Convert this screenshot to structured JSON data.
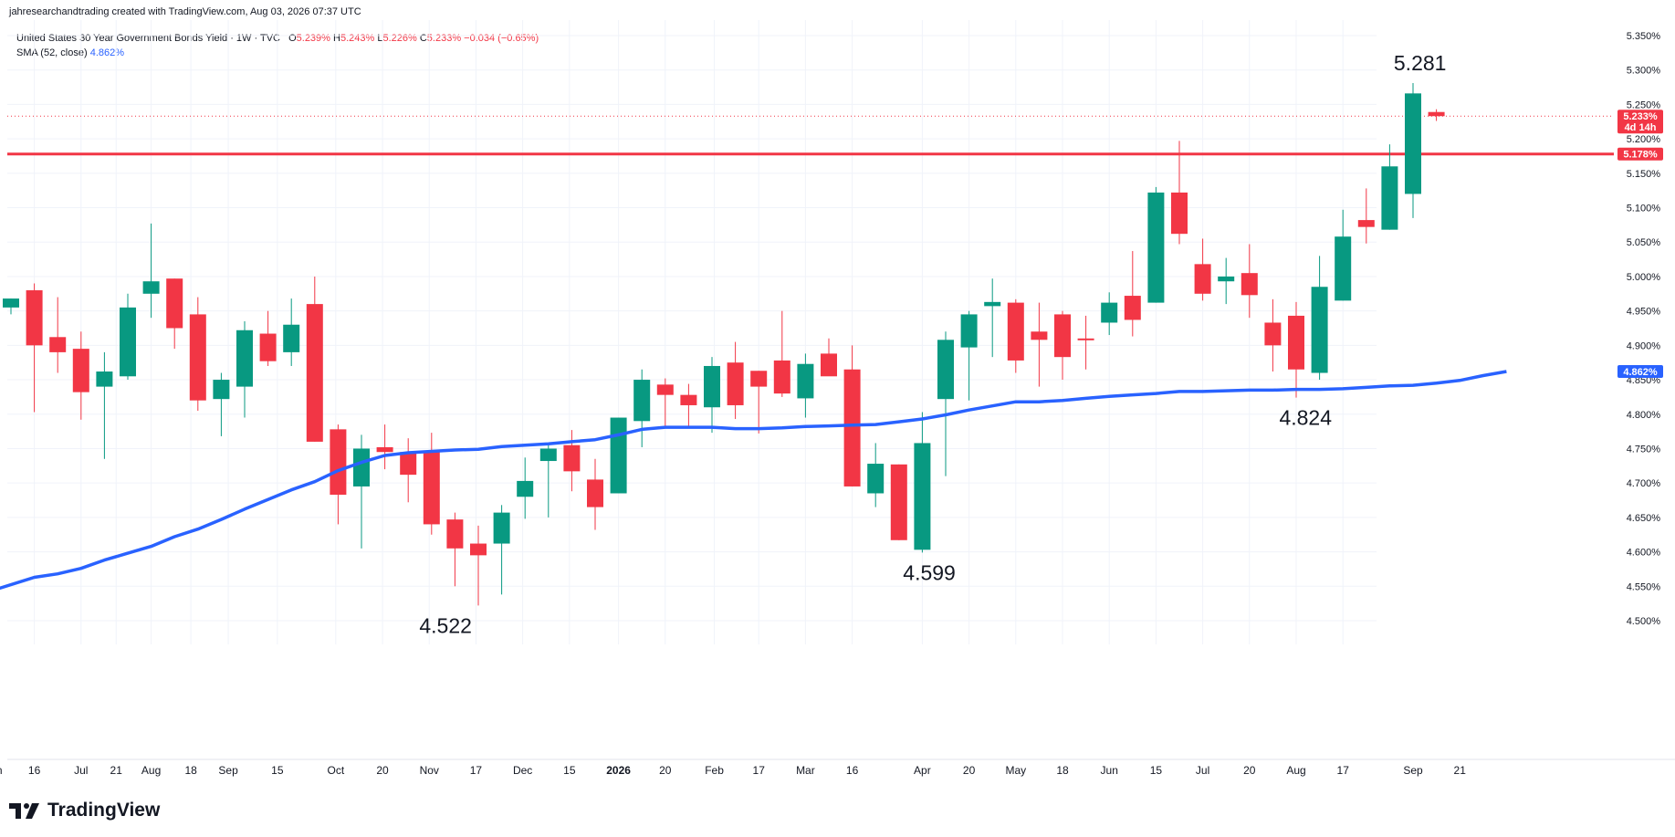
{
  "header": {
    "created_line": "jahresearchandtrading created with TradingView.com, Aug 03, 2026 07:37 UTC"
  },
  "legend": {
    "symbol": "United States 30 Year Government Bonds Yield · 1W · TVC",
    "o_label": "O",
    "o_value": "5.239%",
    "h_label": "H",
    "h_value": "5.243%",
    "l_label": "L",
    "l_value": "5.226%",
    "c_label": "C",
    "c_value": "5.233%",
    "change": "−0.034 (−0.65%)",
    "sma_label": "SMA (52, close)",
    "sma_value": "4.862%"
  },
  "brand": {
    "name": "TradingView"
  },
  "colors": {
    "up": "#089981",
    "down": "#f23645",
    "sma": "#2962ff",
    "resistance": "#f23645",
    "grid": "#f0f3fa",
    "axis_text": "#131722"
  },
  "chart_data": {
    "type": "candlestick",
    "title": "United States 30 Year Government Bonds Yield",
    "interval": "1W",
    "y_axis_side": "right",
    "ylim": [
      4.475,
      5.37
    ],
    "y_ticks": [
      "4.500%",
      "4.550%",
      "4.600%",
      "4.650%",
      "4.700%",
      "4.750%",
      "4.800%",
      "4.850%",
      "4.900%",
      "4.950%",
      "5.000%",
      "5.050%",
      "5.100%",
      "5.150%",
      "5.200%",
      "5.250%",
      "5.300%",
      "5.350%"
    ],
    "x_ticks": [
      {
        "label": "n",
        "i": -0.5
      },
      {
        "label": "16",
        "i": 1
      },
      {
        "label": "Jul",
        "i": 3
      },
      {
        "label": "21",
        "i": 4.5
      },
      {
        "label": "Aug",
        "i": 6
      },
      {
        "label": "18",
        "i": 7.7
      },
      {
        "label": "Sep",
        "i": 9.3
      },
      {
        "label": "15",
        "i": 11.4
      },
      {
        "label": "Oct",
        "i": 13.9
      },
      {
        "label": "20",
        "i": 15.9
      },
      {
        "label": "Nov",
        "i": 17.9
      },
      {
        "label": "17",
        "i": 19.9
      },
      {
        "label": "Dec",
        "i": 21.9
      },
      {
        "label": "15",
        "i": 23.9
      },
      {
        "label": "2026",
        "i": 26.0
      },
      {
        "label": "20",
        "i": 28.0
      },
      {
        "label": "Feb",
        "i": 30.1
      },
      {
        "label": "17",
        "i": 32.0
      },
      {
        "label": "Mar",
        "i": 34.0
      },
      {
        "label": "16",
        "i": 36.0
      },
      {
        "label": "Apr",
        "i": 39.0
      },
      {
        "label": "20",
        "i": 41.0
      },
      {
        "label": "May",
        "i": 43.0
      },
      {
        "label": "18",
        "i": 45.0
      },
      {
        "label": "Jun",
        "i": 47.0
      },
      {
        "label": "15",
        "i": 49.0
      },
      {
        "label": "Jul",
        "i": 51.0
      },
      {
        "label": "20",
        "i": 53.0
      },
      {
        "label": "Aug",
        "i": 55.0
      },
      {
        "label": "17",
        "i": 57.0
      },
      {
        "label": "Sep",
        "i": 60.0
      },
      {
        "label": "21",
        "i": 62.0
      }
    ],
    "candles": [
      {
        "o": 4.955,
        "h": 4.968,
        "l": 4.945,
        "c": 4.968
      },
      {
        "o": 4.98,
        "h": 4.99,
        "l": 4.803,
        "c": 4.9
      },
      {
        "o": 4.912,
        "h": 4.97,
        "l": 4.86,
        "c": 4.89
      },
      {
        "o": 4.895,
        "h": 4.92,
        "l": 4.792,
        "c": 4.832
      },
      {
        "o": 4.84,
        "h": 4.89,
        "l": 4.735,
        "c": 4.862
      },
      {
        "o": 4.855,
        "h": 4.975,
        "l": 4.85,
        "c": 4.955
      },
      {
        "o": 4.975,
        "h": 5.077,
        "l": 4.94,
        "c": 4.993
      },
      {
        "o": 4.997,
        "h": 4.997,
        "l": 4.895,
        "c": 4.925
      },
      {
        "o": 4.945,
        "h": 4.97,
        "l": 4.805,
        "c": 4.82
      },
      {
        "o": 4.822,
        "h": 4.86,
        "l": 4.768,
        "c": 4.85
      },
      {
        "o": 4.84,
        "h": 4.935,
        "l": 4.795,
        "c": 4.922
      },
      {
        "o": 4.917,
        "h": 4.95,
        "l": 4.87,
        "c": 4.877
      },
      {
        "o": 4.89,
        "h": 4.968,
        "l": 4.87,
        "c": 4.93
      },
      {
        "o": 4.96,
        "h": 5.0,
        "l": 4.76,
        "c": 4.76
      },
      {
        "o": 4.778,
        "h": 4.785,
        "l": 4.64,
        "c": 4.683
      },
      {
        "o": 4.695,
        "h": 4.77,
        "l": 4.605,
        "c": 4.75
      },
      {
        "o": 4.752,
        "h": 4.785,
        "l": 4.72,
        "c": 4.745
      },
      {
        "o": 4.745,
        "h": 4.765,
        "l": 4.672,
        "c": 4.712
      },
      {
        "o": 4.745,
        "h": 4.773,
        "l": 4.625,
        "c": 4.64
      },
      {
        "o": 4.647,
        "h": 4.657,
        "l": 4.55,
        "c": 4.605
      },
      {
        "o": 4.612,
        "h": 4.638,
        "l": 4.522,
        "c": 4.595
      },
      {
        "o": 4.612,
        "h": 4.668,
        "l": 4.538,
        "c": 4.657
      },
      {
        "o": 4.68,
        "h": 4.737,
        "l": 4.648,
        "c": 4.703
      },
      {
        "o": 4.732,
        "h": 4.755,
        "l": 4.65,
        "c": 4.75
      },
      {
        "o": 4.755,
        "h": 4.777,
        "l": 4.688,
        "c": 4.717
      },
      {
        "o": 4.705,
        "h": 4.735,
        "l": 4.632,
        "c": 4.665
      },
      {
        "o": 4.685,
        "h": 4.795,
        "l": 4.685,
        "c": 4.795
      },
      {
        "o": 4.79,
        "h": 4.865,
        "l": 4.752,
        "c": 4.85
      },
      {
        "o": 4.843,
        "h": 4.852,
        "l": 4.783,
        "c": 4.828
      },
      {
        "o": 4.828,
        "h": 4.844,
        "l": 4.782,
        "c": 4.813
      },
      {
        "o": 4.81,
        "h": 4.883,
        "l": 4.773,
        "c": 4.87
      },
      {
        "o": 4.875,
        "h": 4.905,
        "l": 4.793,
        "c": 4.813
      },
      {
        "o": 4.863,
        "h": 4.863,
        "l": 4.772,
        "c": 4.84
      },
      {
        "o": 4.878,
        "h": 4.95,
        "l": 4.825,
        "c": 4.83
      },
      {
        "o": 4.823,
        "h": 4.888,
        "l": 4.795,
        "c": 4.873
      },
      {
        "o": 4.888,
        "h": 4.91,
        "l": 4.858,
        "c": 4.855
      },
      {
        "o": 4.865,
        "h": 4.9,
        "l": 4.695,
        "c": 4.695
      },
      {
        "o": 4.685,
        "h": 4.758,
        "l": 4.665,
        "c": 4.728
      },
      {
        "o": 4.727,
        "h": 4.727,
        "l": 4.617,
        "c": 4.617
      },
      {
        "o": 4.603,
        "h": 4.803,
        "l": 4.599,
        "c": 4.758
      },
      {
        "o": 4.822,
        "h": 4.92,
        "l": 4.71,
        "c": 4.908
      },
      {
        "o": 4.897,
        "h": 4.95,
        "l": 4.82,
        "c": 4.945
      },
      {
        "o": 4.957,
        "h": 4.997,
        "l": 4.883,
        "c": 4.963
      },
      {
        "o": 4.962,
        "h": 4.967,
        "l": 4.86,
        "c": 4.878
      },
      {
        "o": 4.92,
        "h": 4.962,
        "l": 4.84,
        "c": 4.908
      },
      {
        "o": 4.945,
        "h": 4.95,
        "l": 4.85,
        "c": 4.883
      },
      {
        "o": 4.91,
        "h": 4.943,
        "l": 4.865,
        "c": 4.908
      },
      {
        "o": 4.933,
        "h": 4.977,
        "l": 4.915,
        "c": 4.962
      },
      {
        "o": 4.972,
        "h": 5.037,
        "l": 4.913,
        "c": 4.937
      },
      {
        "o": 4.962,
        "h": 5.13,
        "l": 4.962,
        "c": 5.122
      },
      {
        "o": 5.122,
        "h": 5.197,
        "l": 5.047,
        "c": 5.062
      },
      {
        "o": 5.018,
        "h": 5.055,
        "l": 4.965,
        "c": 4.975
      },
      {
        "o": 4.993,
        "h": 5.027,
        "l": 4.96,
        "c": 5.0
      },
      {
        "o": 5.005,
        "h": 5.047,
        "l": 4.94,
        "c": 4.973
      },
      {
        "o": 4.933,
        "h": 4.967,
        "l": 4.862,
        "c": 4.9
      },
      {
        "o": 4.943,
        "h": 4.963,
        "l": 4.824,
        "c": 4.865
      },
      {
        "o": 4.86,
        "h": 5.03,
        "l": 4.85,
        "c": 4.985
      },
      {
        "o": 4.965,
        "h": 5.097,
        "l": 4.965,
        "c": 5.058
      },
      {
        "o": 5.082,
        "h": 5.128,
        "l": 5.048,
        "c": 5.072
      },
      {
        "o": 5.068,
        "h": 5.192,
        "l": 5.068,
        "c": 5.16
      },
      {
        "o": 5.12,
        "h": 5.281,
        "l": 5.085,
        "c": 5.266
      },
      {
        "o": 5.239,
        "h": 5.243,
        "l": 5.226,
        "c": 5.233
      }
    ],
    "sma": {
      "name": "SMA (52, close)",
      "points": [
        {
          "i": -0.5,
          "v": 4.547
        },
        {
          "i": 1,
          "v": 4.563
        },
        {
          "i": 2,
          "v": 4.568
        },
        {
          "i": 3,
          "v": 4.576
        },
        {
          "i": 4,
          "v": 4.588
        },
        {
          "i": 5,
          "v": 4.598
        },
        {
          "i": 6,
          "v": 4.608
        },
        {
          "i": 7,
          "v": 4.622
        },
        {
          "i": 8,
          "v": 4.633
        },
        {
          "i": 9,
          "v": 4.647
        },
        {
          "i": 10,
          "v": 4.662
        },
        {
          "i": 11,
          "v": 4.676
        },
        {
          "i": 12,
          "v": 4.69
        },
        {
          "i": 13,
          "v": 4.702
        },
        {
          "i": 14,
          "v": 4.718
        },
        {
          "i": 15,
          "v": 4.73
        },
        {
          "i": 16,
          "v": 4.74
        },
        {
          "i": 17,
          "v": 4.744
        },
        {
          "i": 18,
          "v": 4.746
        },
        {
          "i": 19,
          "v": 4.748
        },
        {
          "i": 20,
          "v": 4.749
        },
        {
          "i": 21,
          "v": 4.753
        },
        {
          "i": 22,
          "v": 4.755
        },
        {
          "i": 23,
          "v": 4.757
        },
        {
          "i": 24,
          "v": 4.76
        },
        {
          "i": 25,
          "v": 4.763
        },
        {
          "i": 26,
          "v": 4.77
        },
        {
          "i": 27,
          "v": 4.778
        },
        {
          "i": 28,
          "v": 4.781
        },
        {
          "i": 29,
          "v": 4.781
        },
        {
          "i": 30,
          "v": 4.781
        },
        {
          "i": 31,
          "v": 4.779
        },
        {
          "i": 32,
          "v": 4.779
        },
        {
          "i": 33,
          "v": 4.78
        },
        {
          "i": 34,
          "v": 4.782
        },
        {
          "i": 35,
          "v": 4.783
        },
        {
          "i": 36,
          "v": 4.784
        },
        {
          "i": 37,
          "v": 4.785
        },
        {
          "i": 38,
          "v": 4.789
        },
        {
          "i": 39,
          "v": 4.793
        },
        {
          "i": 40,
          "v": 4.799
        },
        {
          "i": 41,
          "v": 4.806
        },
        {
          "i": 42,
          "v": 4.812
        },
        {
          "i": 43,
          "v": 4.818
        },
        {
          "i": 44,
          "v": 4.818
        },
        {
          "i": 45,
          "v": 4.82
        },
        {
          "i": 46,
          "v": 4.823
        },
        {
          "i": 47,
          "v": 4.826
        },
        {
          "i": 48,
          "v": 4.828
        },
        {
          "i": 49,
          "v": 4.83
        },
        {
          "i": 50,
          "v": 4.833
        },
        {
          "i": 51,
          "v": 4.833
        },
        {
          "i": 52,
          "v": 4.834
        },
        {
          "i": 53,
          "v": 4.835
        },
        {
          "i": 54,
          "v": 4.835
        },
        {
          "i": 55,
          "v": 4.836
        },
        {
          "i": 56,
          "v": 4.836
        },
        {
          "i": 57,
          "v": 4.837
        },
        {
          "i": 58,
          "v": 4.839
        },
        {
          "i": 59,
          "v": 4.841
        },
        {
          "i": 60,
          "v": 4.842
        },
        {
          "i": 61,
          "v": 4.845
        },
        {
          "i": 62,
          "v": 4.849
        },
        {
          "i": 63,
          "v": 4.856
        },
        {
          "i": 64,
          "v": 4.862
        }
      ]
    },
    "resistance_line": {
      "value": 5.178,
      "label": "5.178%"
    },
    "last_price": {
      "value": 5.233,
      "label": "5.233%",
      "countdown": "4d 14h"
    },
    "sma_price_label": {
      "value": 4.862,
      "label": "4.862%"
    },
    "annotations": [
      {
        "text": "5.281",
        "i": 60.3,
        "v": 5.281
      },
      {
        "text": "4.824",
        "i": 55.4,
        "v": 4.824
      },
      {
        "text": "4.599",
        "i": 39.3,
        "v": 4.599
      },
      {
        "text": "4.522",
        "i": 18.6,
        "v": 4.522
      }
    ]
  }
}
